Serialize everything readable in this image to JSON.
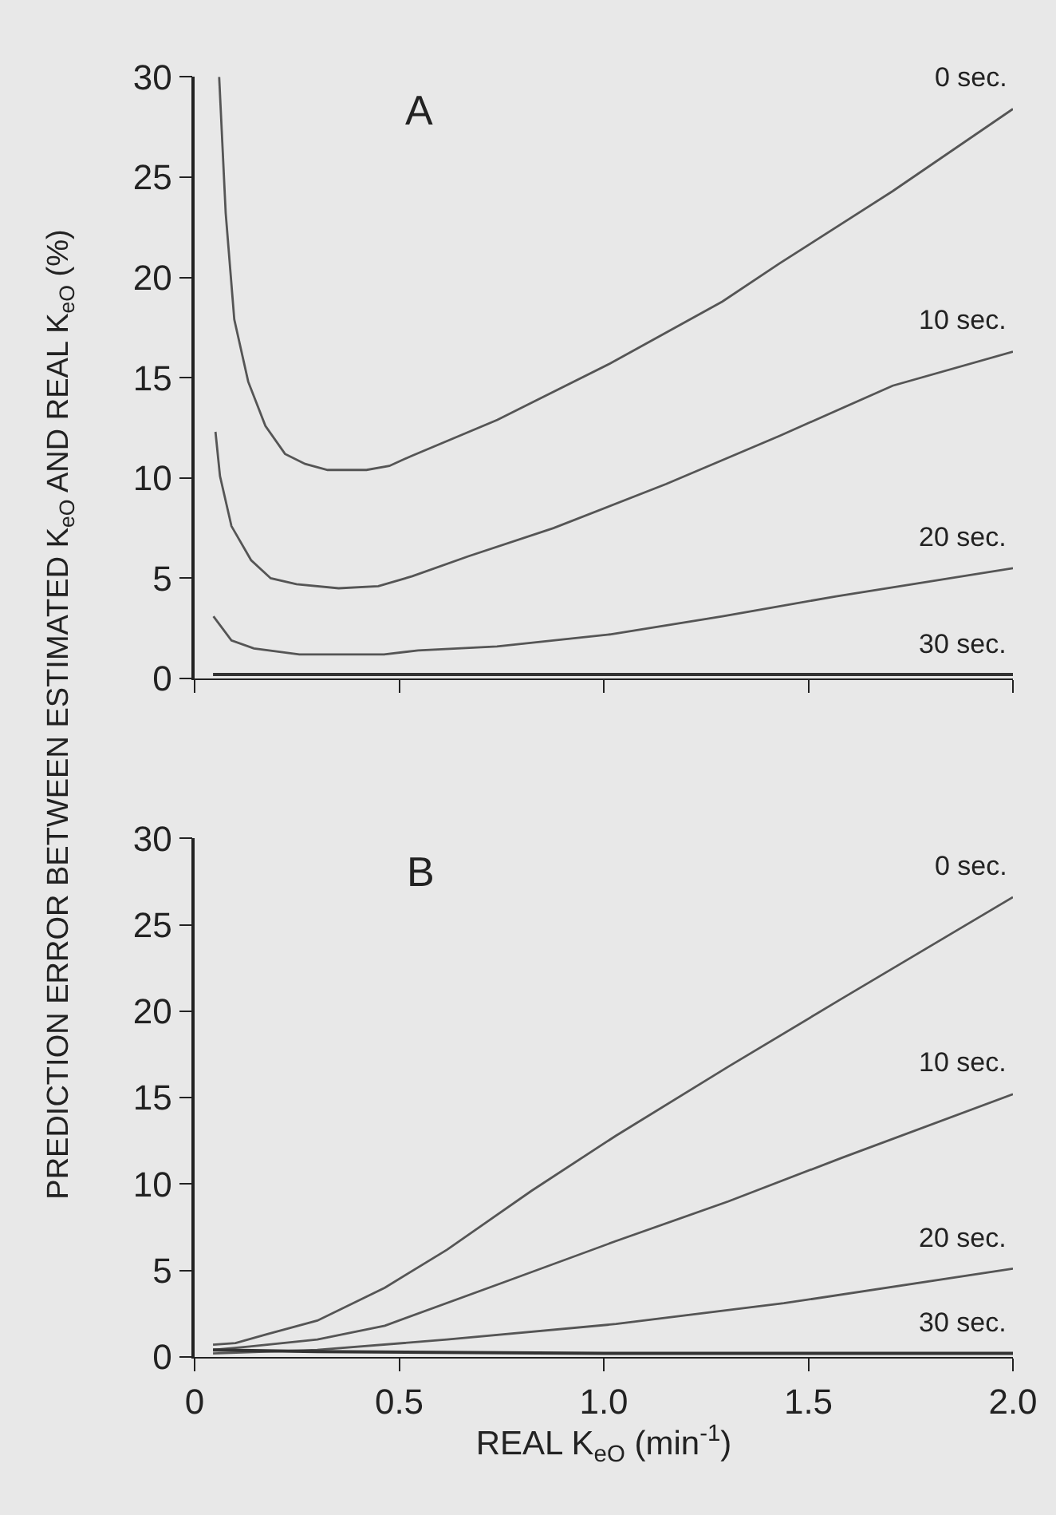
{
  "chart_data": [
    {
      "type": "line",
      "ylabel": "PREDICTION ERROR BETWEEN ESTIMATED K$_{eO}$ AND REAL K$_{eO}$ (%)",
      "annotations": [
        "A"
      ],
      "xlim": [
        0,
        2
      ],
      "xticks": [
        {
          "value": 0,
          "label": null
        },
        {
          "value": 0.5,
          "label": null
        },
        {
          "value": 1,
          "label": null
        },
        {
          "value": 1.5,
          "label": null
        },
        {
          "value": 2,
          "label": null
        }
      ],
      "ylim": [
        0,
        30
      ],
      "yticks": [
        0,
        5,
        10,
        15,
        20,
        25,
        30
      ],
      "tick_labels": "y",
      "grid": false,
      "marker": "none",
      "line_style": "solid",
      "series": [
        {
          "name": "0 sec.",
          "color": "#555555",
          "x": [
            0.06,
            0.076,
            0.097,
            0.131,
            0.173,
            0.221,
            0.27,
            0.325,
            0.42,
            0.476,
            0.53,
            0.74,
            1.015,
            1.29,
            1.43,
            1.706,
            2.0
          ],
          "values": [
            30,
            23.2,
            17.9,
            14.8,
            12.6,
            11.2,
            10.7,
            10.4,
            10.4,
            10.6,
            11.1,
            12.9,
            15.7,
            18.8,
            20.7,
            24.3,
            28.4
          ]
        },
        {
          "name": "10 sec.",
          "color": "#555555",
          "x": [
            0.051,
            0.062,
            0.09,
            0.138,
            0.186,
            0.249,
            0.352,
            0.449,
            0.532,
            0.67,
            0.877,
            1.153,
            1.43,
            1.706,
            2.0
          ],
          "values": [
            12.3,
            10.1,
            7.6,
            5.9,
            5.0,
            4.7,
            4.5,
            4.6,
            5.1,
            6.1,
            7.5,
            9.7,
            12.1,
            14.6,
            16.3
          ]
        },
        {
          "name": "20 sec.",
          "color": "#555555",
          "x": [
            0.046,
            0.09,
            0.145,
            0.256,
            0.463,
            0.546,
            0.739,
            1.015,
            1.29,
            1.568,
            2.0
          ],
          "values": [
            3.1,
            1.9,
            1.5,
            1.2,
            1.2,
            1.4,
            1.6,
            2.2,
            3.1,
            4.1,
            5.5
          ]
        },
        {
          "name": "30 sec.",
          "color": "#333333",
          "x": [
            0.045,
            1.0,
            2.0
          ],
          "values": [
            0.2,
            0.2,
            0.2
          ]
        }
      ]
    },
    {
      "type": "line",
      "xlabel": "REAL K$_{eO}$ (min$^{-1}$)",
      "annotations": [
        "B"
      ],
      "xlim": [
        0,
        2
      ],
      "xticks": [
        0,
        0.5,
        {
          "value": 1,
          "label": "1.0"
        },
        1.5,
        {
          "value": 2,
          "label": "2.0"
        }
      ],
      "ylim": [
        0,
        30
      ],
      "yticks": [
        0,
        5,
        10,
        15,
        20,
        25,
        30
      ],
      "grid": false,
      "marker": "none",
      "line_style": "solid",
      "series": [
        {
          "name": "0 sec.",
          "color": "#555555",
          "x": [
            0.045,
            0.1,
            0.176,
            0.3,
            0.465,
            0.617,
            0.823,
            1.03,
            1.305,
            1.58,
            2.0
          ],
          "values": [
            0.7,
            0.8,
            1.3,
            2.1,
            4.0,
            6.2,
            9.6,
            12.8,
            16.8,
            20.7,
            26.6
          ]
        },
        {
          "name": "10 sec.",
          "color": "#555555",
          "x": [
            0.045,
            0.135,
            0.3,
            0.465,
            0.754,
            1.03,
            1.305,
            1.58,
            2.0
          ],
          "values": [
            0.4,
            0.6,
            1.0,
            1.8,
            4.3,
            6.7,
            9.0,
            11.5,
            15.2
          ]
        },
        {
          "name": "20 sec.",
          "color": "#555555",
          "x": [
            0.045,
            0.3,
            0.617,
            1.03,
            1.44,
            2.0
          ],
          "values": [
            0.2,
            0.4,
            1.0,
            1.9,
            3.1,
            5.1
          ]
        },
        {
          "name": "30 sec.",
          "color": "#333333",
          "x": [
            0.045,
            0.3,
            1.0,
            2.0
          ],
          "values": [
            0.4,
            0.3,
            0.2,
            0.2
          ]
        }
      ]
    }
  ]
}
